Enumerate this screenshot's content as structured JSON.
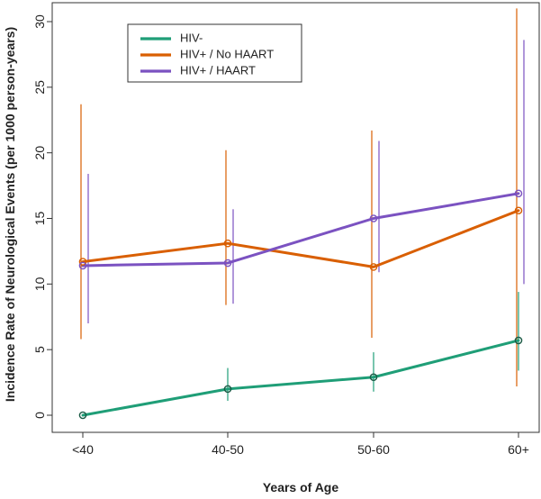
{
  "chart_data": {
    "type": "line",
    "title": "",
    "xlabel": "Years of Age",
    "ylabel": "Incidence Rate of Neurological Events (per 1000 person-years)",
    "categories": [
      "<40",
      "40-50",
      "50-60",
      "60+"
    ],
    "ylim": [
      0,
      31
    ],
    "yticks": [
      0,
      5,
      10,
      15,
      20,
      25,
      30
    ],
    "grid": false,
    "legend_position": "top-left",
    "series": [
      {
        "name": "HIV-",
        "color": "#1f9e77",
        "values": [
          0.0,
          2.0,
          2.9,
          5.7
        ],
        "ci_low": [
          0.0,
          1.1,
          1.8,
          3.4
        ],
        "ci_high": [
          0.0,
          3.6,
          4.8,
          9.4
        ]
      },
      {
        "name": "HIV+ / No HAART",
        "color": "#d95f02",
        "values": [
          11.7,
          13.1,
          11.3,
          15.6
        ],
        "ci_low": [
          5.8,
          8.4,
          5.9,
          2.2
        ],
        "ci_high": [
          23.7,
          20.2,
          21.7,
          31.0
        ]
      },
      {
        "name": "HIV+ / HAART",
        "color": "#7b52c1",
        "values": [
          11.4,
          11.6,
          15.0,
          16.9
        ],
        "ci_low": [
          7.0,
          8.5,
          10.9,
          10.0
        ],
        "ci_high": [
          18.4,
          15.7,
          20.9,
          28.6
        ]
      }
    ]
  }
}
